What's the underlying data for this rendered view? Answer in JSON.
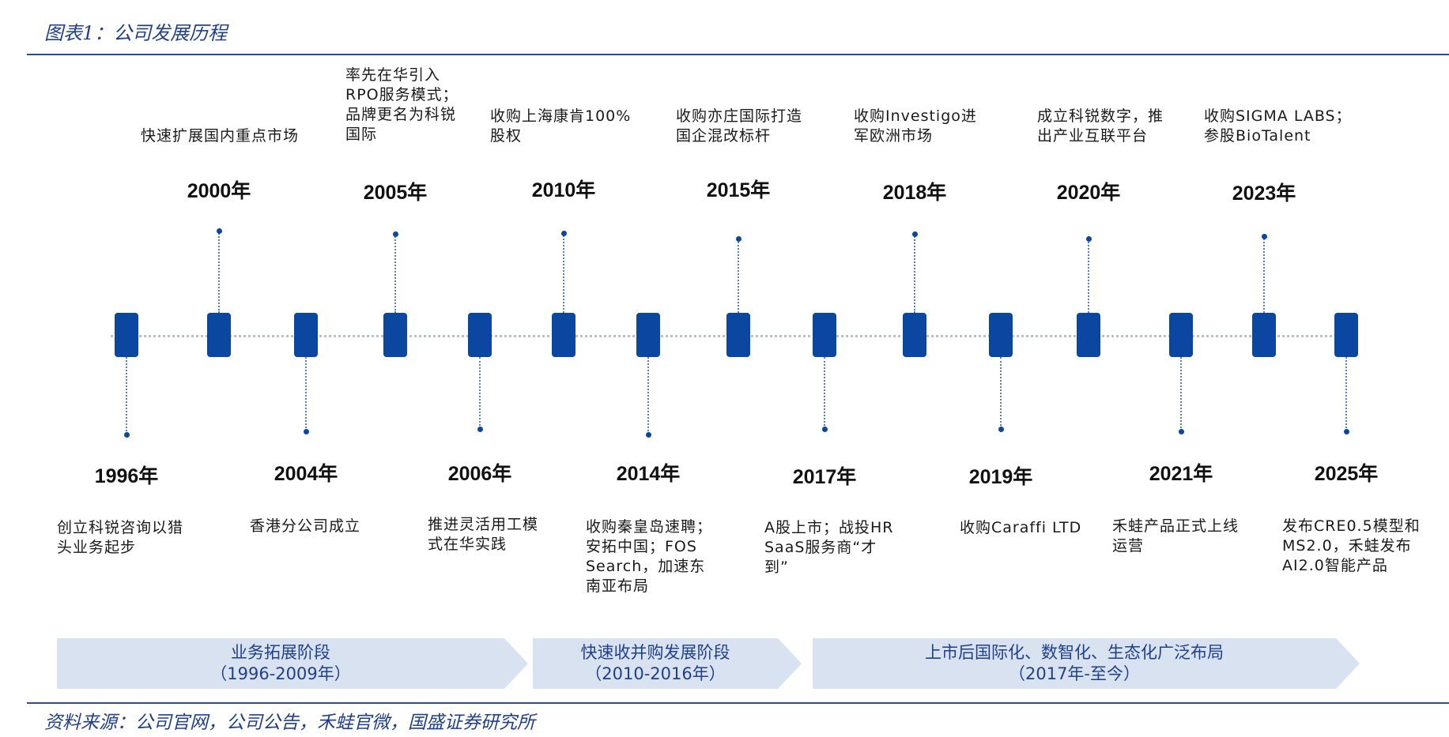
{
  "figure": {
    "title": "图表1：公司发展历程",
    "source": "资料来源：公司官网，公司公告，禾蛙官微，国盛证券研究所"
  },
  "events_top": [
    {
      "year": "2000年",
      "desc": "快速扩展国内重点市场"
    },
    {
      "year": "2005年",
      "desc": "率先在华引入\nRPO服务模式；\n品牌更名为科锐\n国际"
    },
    {
      "year": "2010年",
      "desc": "收购上海康肯100%\n股权"
    },
    {
      "year": "2015年",
      "desc": "收购亦庄国际打造\n国企混改标杆"
    },
    {
      "year": "2018年",
      "desc": "收购Investigo进\n军欧洲市场"
    },
    {
      "year": "2020年",
      "desc": "成立科锐数字，推\n出产业互联平台"
    },
    {
      "year": "2023年",
      "desc": "收购SIGMA LABS；\n参股BioTalent"
    }
  ],
  "events_bottom": [
    {
      "year": "1996年",
      "desc": "创立科锐咨询以猎\n头业务起步"
    },
    {
      "year": "2004年",
      "desc": "香港分公司成立"
    },
    {
      "year": "2006年",
      "desc": "推进灵活用工模\n式在华实践"
    },
    {
      "year": "2014年",
      "desc": "收购秦皇岛速聘；\n安拓中国；FOS\nSearch，加速东\n南亚布局"
    },
    {
      "year": "2017年",
      "desc": "A股上市；战投HR\nSaaS服务商“才\n到”"
    },
    {
      "year": "2019年",
      "desc": "收购Caraffi LTD"
    },
    {
      "year": "2021年",
      "desc": "禾蛙产品正式上线\n运营"
    },
    {
      "year": "2025年",
      "desc": "发布CRE0.5模型和\nMS2.0，禾蛙发布\nAI2.0智能产品"
    }
  ],
  "phases": [
    {
      "label": "业务拓展阶段\n（1996-2009年）"
    },
    {
      "label": "快速收并购发展阶段\n（2010-2016年）"
    },
    {
      "label": "上市后国际化、数智化、生态化广泛布局\n（2017年-至今）"
    }
  ],
  "colors": {
    "node": "#0b47a1",
    "phase_fill": "#d9e2f1",
    "title": "#1f3f8f"
  }
}
